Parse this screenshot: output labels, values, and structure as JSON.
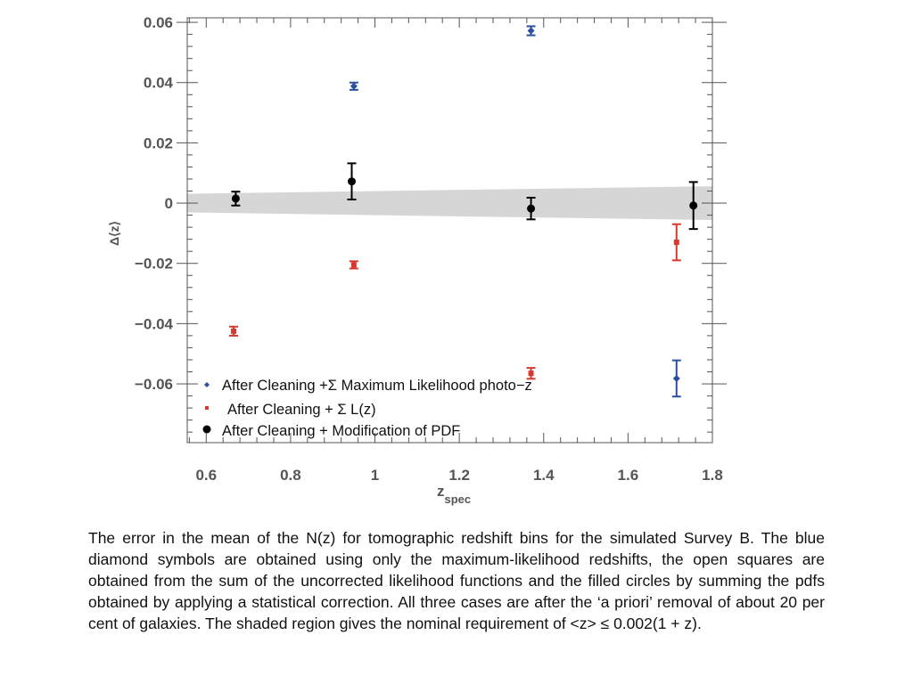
{
  "chart_data": {
    "type": "scatter",
    "xlabel": "z",
    "xlabel_sub": "spec",
    "ylabel": "Δ⟨z⟩",
    "xlim": [
      0.555,
      1.8
    ],
    "ylim": [
      -0.0795,
      0.0615
    ],
    "x_ticks": [
      0.6,
      0.8,
      1.0,
      1.2,
      1.4,
      1.6,
      1.8
    ],
    "x_tick_labels": [
      "0.6",
      "0.8",
      "1",
      "1.2",
      "1.4",
      "1.6",
      "1.8"
    ],
    "y_ticks": [
      0.06,
      0.04,
      0.02,
      0,
      -0.02,
      -0.04,
      -0.06
    ],
    "y_tick_labels": [
      "0.06",
      "0.04",
      "0.02",
      "0",
      "−0.02",
      "−0.04",
      "−0.06"
    ],
    "grid": false,
    "legend_position": "bottom-left",
    "shaded_band": {
      "x": [
        0.555,
        1.8
      ],
      "upper": [
        0.0031,
        0.0056
      ],
      "lower": [
        -0.0031,
        -0.0056
      ]
    },
    "series": [
      {
        "name": "After Cleaning +Σ Maximum Likelihood photo−z",
        "color": "#2a4fa0",
        "marker": "diamond",
        "x": [
          0.95,
          1.37,
          1.715
        ],
        "y": [
          0.0388,
          0.0572,
          -0.0582
        ],
        "err": [
          0.0012,
          0.0015,
          0.006
        ]
      },
      {
        "name": "After Cleaning + Σ L(z)",
        "color": "#d63a2f",
        "marker": "square",
        "x": [
          0.665,
          0.95,
          1.37,
          1.715
        ],
        "y": [
          -0.0425,
          -0.0205,
          -0.0565,
          -0.013
        ],
        "err": [
          0.0015,
          0.0012,
          0.0018,
          0.006
        ]
      },
      {
        "name": "After Cleaning + Modification of PDF",
        "color": "#000000",
        "marker": "circle",
        "x": [
          0.67,
          0.945,
          1.37,
          1.755
        ],
        "y": [
          0.0015,
          0.0072,
          -0.0018,
          -0.0008
        ],
        "err": [
          0.0023,
          0.006,
          0.0036,
          0.0078
        ]
      }
    ]
  },
  "caption": "The error in the mean of the N(z) for tomographic redshift bins for the simulated Survey B. The blue diamond symbols are obtained using only the maximum-likelihood redshifts, the open squares are obtained from the sum of the uncorrected likelihood functions and the filled circles by summing the pdfs obtained by applying a statistical correction. All three cases are after the ‘a priori’ removal of about 20 per cent of galaxies. The shaded region gives the nominal requirement of <z> ≤ 0.002(1 + z)."
}
